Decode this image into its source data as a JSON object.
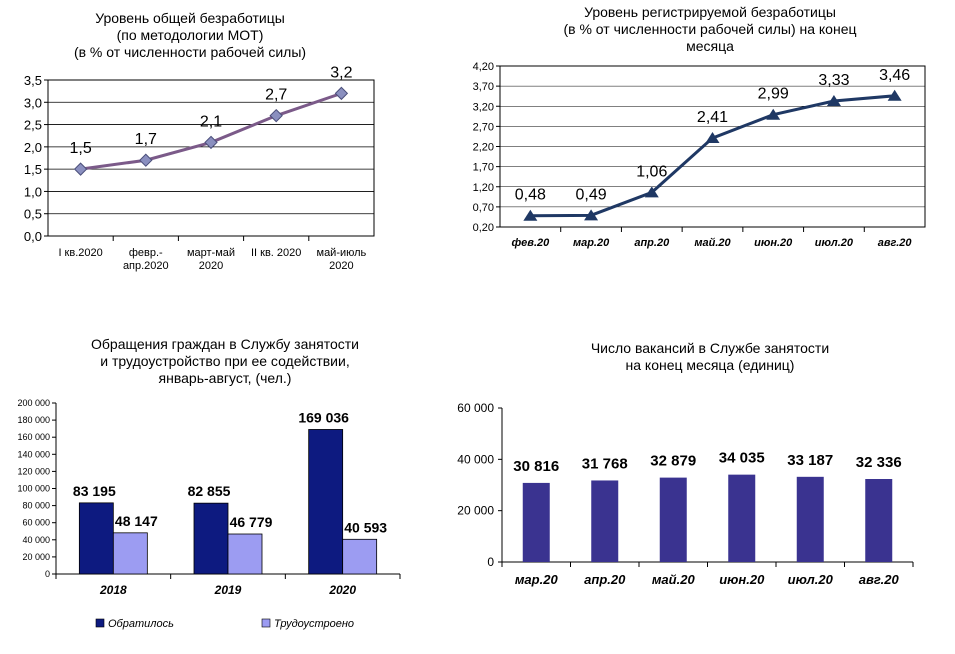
{
  "chart_data": [
    {
      "type": "line",
      "title": [
        "Уровень общей безработицы",
        "(по методологии МОТ)",
        "(в % от численности рабочей силы)"
      ],
      "categories": [
        [
          "I кв.2020"
        ],
        [
          "февр.-",
          "апр.2020"
        ],
        [
          "март-май",
          "2020"
        ],
        [
          "II кв. 2020"
        ],
        [
          "май-июль",
          "2020"
        ]
      ],
      "values": [
        1.5,
        1.7,
        2.1,
        2.7,
        3.2
      ],
      "data_labels": [
        "1,5",
        "1,7",
        "2,1",
        "2,7",
        "3,2"
      ],
      "yticks": [
        "0,0",
        "0,5",
        "1,0",
        "1,5",
        "2,0",
        "2,5",
        "3,0",
        "3,5"
      ],
      "ylim": [
        0,
        3.5
      ],
      "grid": true,
      "line_color": "#7b5a89",
      "marker_color": "#8a8fbf"
    },
    {
      "type": "line",
      "title": [
        "Уровень регистрируемой безработицы",
        "(в % от численности рабочей силы) на конец",
        "месяца"
      ],
      "categories": [
        "фев.20",
        "мар.20",
        "апр.20",
        "май.20",
        "июн.20",
        "июл.20",
        "авг.20"
      ],
      "values": [
        0.48,
        0.49,
        1.06,
        2.41,
        2.99,
        3.33,
        3.46
      ],
      "data_labels": [
        "0,48",
        "0,49",
        "1,06",
        "2,41",
        "2,99",
        "3,33",
        "3,46"
      ],
      "yticks": [
        "0,20",
        "0,70",
        "1,20",
        "1,70",
        "2,20",
        "2,70",
        "3,20",
        "3,70",
        "4,20"
      ],
      "ylim": [
        0.2,
        4.2
      ],
      "grid": true,
      "line_color": "#1f3864"
    },
    {
      "type": "bar",
      "title": [
        "Обращения граждан в Службу занятости",
        "и трудоустройство при ее содействии,",
        "январь-август, (чел.)"
      ],
      "categories": [
        "2018",
        "2019",
        "2020"
      ],
      "series": [
        {
          "name": "Обратилось",
          "values": [
            83195,
            82855,
            169036
          ],
          "labels": [
            "83 195",
            "82 855",
            "169 036"
          ],
          "color": "#0d1a80"
        },
        {
          "name": "Трудоустроено",
          "values": [
            48147,
            46779,
            40593
          ],
          "labels": [
            "48 147",
            "46 779",
            "40 593"
          ],
          "color": "#9c9cf2"
        }
      ],
      "yticks": [
        "0",
        "20 000",
        "40 000",
        "60 000",
        "80 000",
        "100 000",
        "120 000",
        "140 000",
        "160 000",
        "180 000",
        "200 000"
      ],
      "ylim": [
        0,
        200000
      ],
      "legend": "bottom"
    },
    {
      "type": "bar",
      "title": [
        "Число вакансий в Службе занятости",
        "на конец месяца (единиц)"
      ],
      "categories": [
        "мар.20",
        "апр.20",
        "май.20",
        "июн.20",
        "июл.20",
        "авг.20"
      ],
      "values": [
        30816,
        31768,
        32879,
        34035,
        33187,
        32336
      ],
      "data_labels": [
        "30 816",
        "31 768",
        "32 879",
        "34 035",
        "33 187",
        "32 336"
      ],
      "yticks": [
        "0",
        "20 000",
        "40 000",
        "60 000"
      ],
      "ylim": [
        0,
        60000
      ],
      "bar_color": "#3a3390"
    }
  ]
}
